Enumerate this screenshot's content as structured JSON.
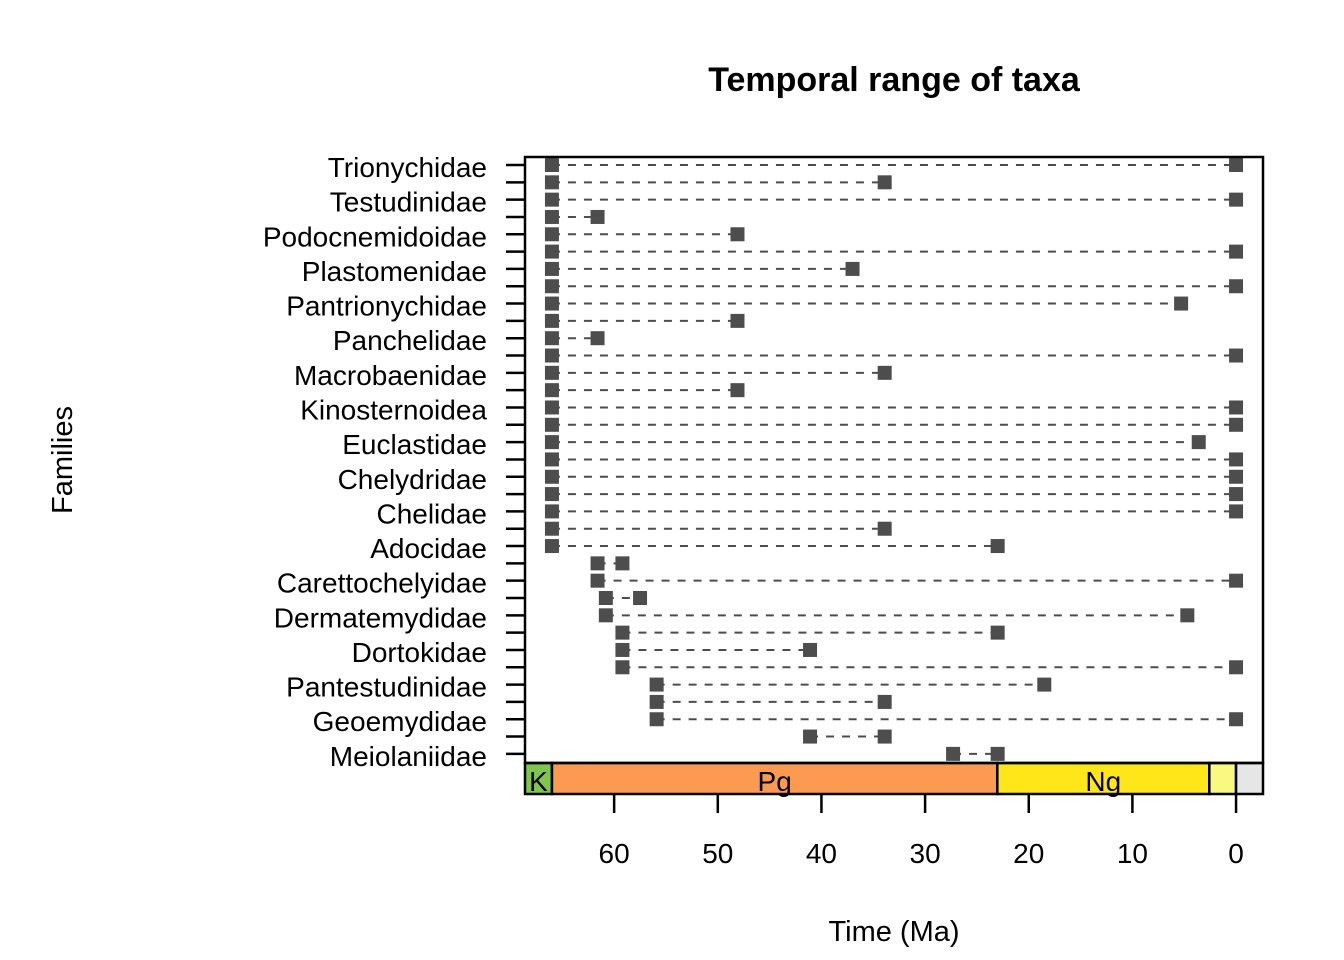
{
  "chart_data": {
    "type": "range",
    "title": "Temporal range of taxa",
    "xlabel": "Time (Ma)",
    "ylabel": "Families",
    "xlim": [
      68.6,
      -2.6
    ],
    "x_ticks": [
      60,
      50,
      40,
      30,
      20,
      10,
      0
    ],
    "x_tick_labels": [
      "60",
      "50",
      "40",
      "30",
      "20",
      "10",
      "0"
    ],
    "grid": false,
    "point_color": "#4d4d4d",
    "line_style": "dashed",
    "timescale": [
      {
        "label": "K",
        "start": 68.6,
        "end": 66.0,
        "color": "#7fc64e"
      },
      {
        "label": "Pg",
        "start": 66.0,
        "end": 23.03,
        "color": "#fd9a52"
      },
      {
        "label": "Ng",
        "start": 23.03,
        "end": 2.58,
        "color": "#ffe619"
      },
      {
        "label": "",
        "start": 2.58,
        "end": 0.0,
        "color": "#f9f97f"
      },
      {
        "label": "",
        "start": 0.0,
        "end": -2.6,
        "color": "#e6e6e6"
      }
    ],
    "taxa": [
      {
        "label": "Trionychidae",
        "start": 66.0,
        "end": 0.0
      },
      {
        "label": "",
        "start": 66.0,
        "end": 33.9
      },
      {
        "label": "Testudinidae",
        "start": 66.0,
        "end": 0.0
      },
      {
        "label": "",
        "start": 66.0,
        "end": 61.6
      },
      {
        "label": "Podocnemidoidae",
        "start": 66.0,
        "end": 48.1
      },
      {
        "label": "",
        "start": 66.0,
        "end": 0.0
      },
      {
        "label": "Plastomenidae",
        "start": 66.0,
        "end": 37.0
      },
      {
        "label": "",
        "start": 66.0,
        "end": 0.0
      },
      {
        "label": "Pantrionychidae",
        "start": 66.0,
        "end": 5.3
      },
      {
        "label": "",
        "start": 66.0,
        "end": 48.1
      },
      {
        "label": "Panchelidae",
        "start": 66.0,
        "end": 61.6
      },
      {
        "label": "",
        "start": 66.0,
        "end": 0.0
      },
      {
        "label": "Macrobaenidae",
        "start": 66.0,
        "end": 33.9
      },
      {
        "label": "",
        "start": 66.0,
        "end": 48.1
      },
      {
        "label": "Kinosternoidea",
        "start": 66.0,
        "end": 0.0
      },
      {
        "label": "",
        "start": 66.0,
        "end": 0.0
      },
      {
        "label": "Euclastidae",
        "start": 66.0,
        "end": 3.6
      },
      {
        "label": "",
        "start": 66.0,
        "end": 0.0
      },
      {
        "label": "Chelydridae",
        "start": 66.0,
        "end": 0.0
      },
      {
        "label": "",
        "start": 66.0,
        "end": 0.0
      },
      {
        "label": "Chelidae",
        "start": 66.0,
        "end": 0.0
      },
      {
        "label": "",
        "start": 66.0,
        "end": 33.9
      },
      {
        "label": "Adocidae",
        "start": 66.0,
        "end": 23.0
      },
      {
        "label": "",
        "start": 61.6,
        "end": 59.2
      },
      {
        "label": "Carettochelyidae",
        "start": 61.6,
        "end": 0.0
      },
      {
        "label": "",
        "start": 60.8,
        "end": 57.5
      },
      {
        "label": "Dermatemydidae",
        "start": 60.8,
        "end": 4.7
      },
      {
        "label": "",
        "start": 59.2,
        "end": 23.0
      },
      {
        "label": "Dortokidae",
        "start": 59.2,
        "end": 41.1
      },
      {
        "label": "",
        "start": 59.2,
        "end": 0.0
      },
      {
        "label": "Pantestudinidae",
        "start": 55.9,
        "end": 18.5
      },
      {
        "label": "",
        "start": 55.9,
        "end": 33.9
      },
      {
        "label": "Geoemydidae",
        "start": 55.9,
        "end": 0.0
      },
      {
        "label": "",
        "start": 41.1,
        "end": 33.9
      },
      {
        "label": "Meiolaniidae",
        "start": 27.3,
        "end": 23.0
      }
    ]
  }
}
